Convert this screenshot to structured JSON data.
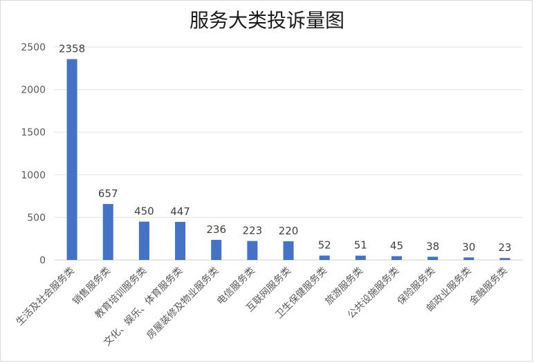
{
  "chart_data": {
    "type": "bar",
    "title": "服务大类投诉量图",
    "xlabel": "",
    "ylabel": "",
    "ylim": [
      0,
      2500
    ],
    "yticks": [
      0,
      500,
      1000,
      1500,
      2000,
      2500
    ],
    "grid": true,
    "legend": "none",
    "bar_color": "#4472c4",
    "categories": [
      "生活及社会服务类",
      "销售服务类",
      "教育培训服务类",
      "文化、娱乐、体育服务类",
      "房屋装修及物业服务类",
      "电信服务类",
      "互联网服务类",
      "卫生保健服务类",
      "旅游服务类",
      "公共设施服务类",
      "保险服务类",
      "邮政业服务类",
      "金融服务类"
    ],
    "values": [
      2358,
      657,
      450,
      447,
      236,
      223,
      220,
      52,
      51,
      45,
      38,
      30,
      23
    ]
  }
}
